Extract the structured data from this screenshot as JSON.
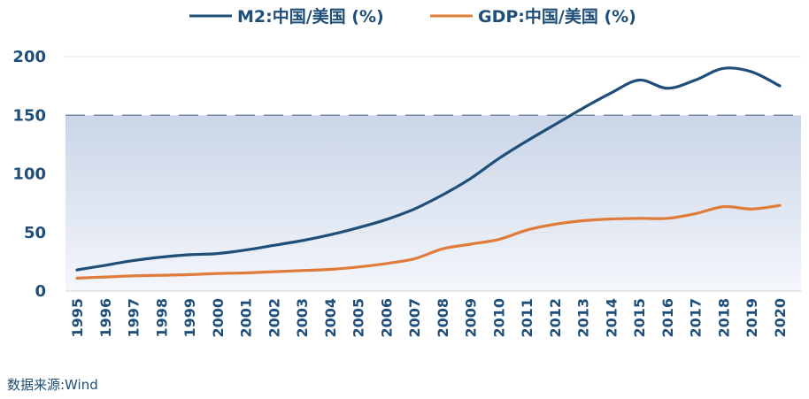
{
  "chart_data": {
    "type": "line",
    "title": "",
    "xlabel": "",
    "ylabel": "",
    "ylim": [
      0,
      200
    ],
    "yticks": [
      0,
      50,
      100,
      150,
      200
    ],
    "grid": true,
    "legend_position": "top-center",
    "categories": [
      "1995",
      "1996",
      "1997",
      "1998",
      "1999",
      "2000",
      "2001",
      "2002",
      "2003",
      "2004",
      "2005",
      "2006",
      "2007",
      "2008",
      "2009",
      "2010",
      "2011",
      "2012",
      "2013",
      "2014",
      "2015",
      "2016",
      "2017",
      "2018",
      "2019",
      "2020"
    ],
    "series": [
      {
        "name": "M2:中国/美国 (%)",
        "color": "#1f4e79",
        "values": [
          18,
          22,
          26,
          29,
          31,
          32,
          35,
          39,
          43,
          48,
          54,
          61,
          70,
          82,
          96,
          113,
          128,
          142,
          156,
          169,
          180,
          173,
          180,
          190,
          187,
          175
        ]
      },
      {
        "name": "GDP:中国/美国 (%)",
        "color": "#e07b39",
        "values": [
          11,
          12,
          13,
          13.5,
          14,
          15,
          15.5,
          16.5,
          17.5,
          18.5,
          20.5,
          23.5,
          27.5,
          36,
          40,
          44,
          52,
          57,
          60,
          61.5,
          62,
          62,
          66,
          72,
          70,
          73
        ]
      }
    ],
    "band": {
      "from": 0,
      "to": 150,
      "color": "#dfe6f1",
      "line_value": 150
    },
    "source": "数据来源:Wind"
  }
}
